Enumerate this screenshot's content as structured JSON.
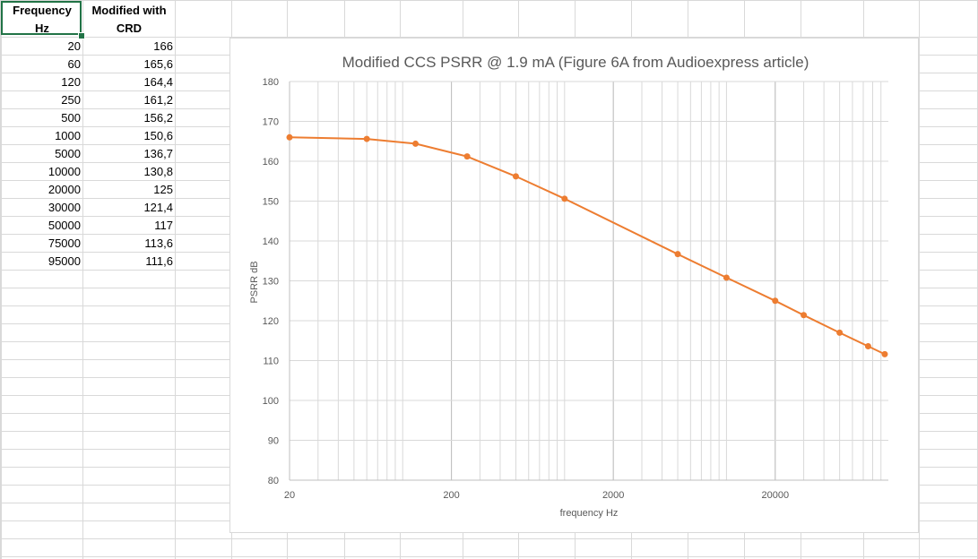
{
  "sheet": {
    "headers": {
      "col_a_line1": "Frequency",
      "col_a_line2": "Hz",
      "col_b_line1": "Modified with",
      "col_b_line2": "CRD"
    },
    "rows": [
      {
        "freq": "20",
        "value": "166"
      },
      {
        "freq": "60",
        "value": "165,6"
      },
      {
        "freq": "120",
        "value": "164,4"
      },
      {
        "freq": "250",
        "value": "161,2"
      },
      {
        "freq": "500",
        "value": "156,2"
      },
      {
        "freq": "1000",
        "value": "150,6"
      },
      {
        "freq": "5000",
        "value": "136,7"
      },
      {
        "freq": "10000",
        "value": "130,8"
      },
      {
        "freq": "20000",
        "value": "125"
      },
      {
        "freq": "30000",
        "value": "121,4"
      },
      {
        "freq": "50000",
        "value": "117"
      },
      {
        "freq": "75000",
        "value": "113,6"
      },
      {
        "freq": "95000",
        "value": "111,6"
      }
    ]
  },
  "colors": {
    "series": "#ED7D31",
    "selection": "#217346",
    "gridline": "#d9d9d9",
    "title": "#595959"
  },
  "chart_data": {
    "type": "scatter",
    "title": "Modified CCS PSRR @ 1.9 mA (Figure  6A from Audioexpress article)",
    "xlabel": "frequency Hz",
    "ylabel": "PSRR dB",
    "x_scale": "log",
    "xlim": [
      20,
      100000
    ],
    "ylim": [
      80,
      180
    ],
    "x_ticks": [
      "20",
      "200",
      "2000",
      "20000"
    ],
    "y_ticks": [
      "80",
      "90",
      "100",
      "110",
      "120",
      "130",
      "140",
      "150",
      "160",
      "170",
      "180"
    ],
    "grid": true,
    "legend": "none",
    "series": [
      {
        "x": [
          20,
          60,
          120,
          250,
          500,
          1000,
          5000,
          10000,
          20000,
          30000,
          50000,
          75000,
          95000
        ],
        "y": [
          166,
          165.6,
          164.4,
          161.2,
          156.2,
          150.6,
          136.7,
          130.8,
          125,
          121.4,
          117,
          113.6,
          111.6
        ]
      }
    ]
  }
}
